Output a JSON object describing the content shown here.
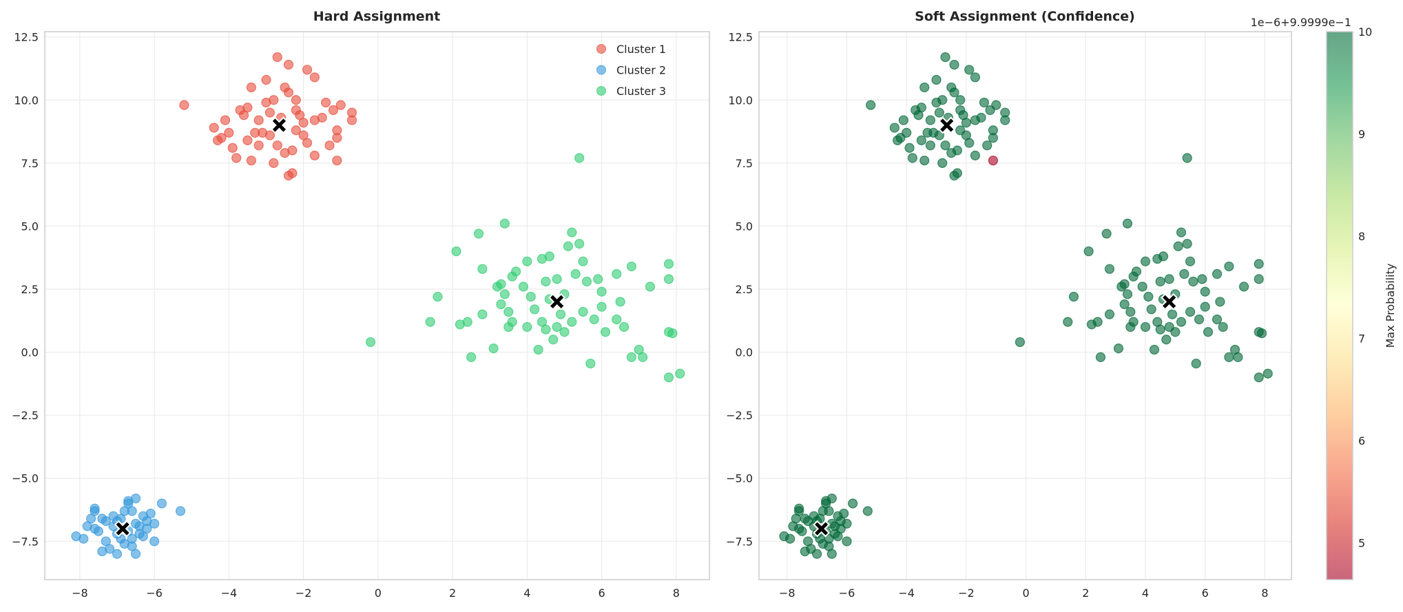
{
  "chart_data": [
    {
      "type": "scatter",
      "title": "Hard Assignment",
      "xlim": [
        -8.94,
        8.89
      ],
      "ylim": [
        -9.02,
        12.71
      ],
      "xticks": [
        -8,
        -6,
        -4,
        -2,
        0,
        2,
        4,
        6,
        8
      ],
      "yticks": [
        -7.5,
        -5.0,
        -2.5,
        0.0,
        2.5,
        5.0,
        7.5,
        10.0,
        12.5
      ],
      "ytick_labels": [
        "−7.5",
        "−5.0",
        "−2.5",
        "0.0",
        "2.5",
        "5.0",
        "7.5",
        "10.0",
        "12.5"
      ],
      "xtick_labels": [
        "−8",
        "−6",
        "−4",
        "−2",
        "0",
        "2",
        "4",
        "6",
        "8"
      ],
      "grid": true,
      "legend": "top-right",
      "series": [
        {
          "name": "Cluster 1",
          "color": "#e74c3c",
          "points": [
            [
              -5.2,
              9.8
            ],
            [
              -4.4,
              8.9
            ],
            [
              -4.3,
              8.4
            ],
            [
              -4.1,
              9.2
            ],
            [
              -3.9,
              8.1
            ],
            [
              -3.8,
              7.7
            ],
            [
              -3.7,
              9.6
            ],
            [
              -3.6,
              9.4
            ],
            [
              -3.5,
              8.4
            ],
            [
              -3.4,
              7.6
            ],
            [
              -3.4,
              10.5
            ],
            [
              -3.3,
              8.7
            ],
            [
              -3.2,
              9.2
            ],
            [
              -3.0,
              10.8
            ],
            [
              -2.9,
              9.5
            ],
            [
              -2.9,
              8.6
            ],
            [
              -2.8,
              10.0
            ],
            [
              -2.7,
              8.2
            ],
            [
              -2.7,
              11.7
            ],
            [
              -2.5,
              10.5
            ],
            [
              -2.4,
              11.4
            ],
            [
              -2.5,
              7.9
            ],
            [
              -2.4,
              7.0
            ],
            [
              -2.3,
              7.1
            ],
            [
              -2.2,
              10.0
            ],
            [
              -2.2,
              8.8
            ],
            [
              -2.1,
              9.4
            ],
            [
              -2.0,
              8.6
            ],
            [
              -1.9,
              11.2
            ],
            [
              -1.7,
              10.9
            ],
            [
              -1.7,
              9.2
            ],
            [
              -1.7,
              7.8
            ],
            [
              -1.5,
              9.3
            ],
            [
              -1.4,
              9.9
            ],
            [
              -1.2,
              9.6
            ],
            [
              -1.3,
              8.2
            ],
            [
              -1.1,
              8.5
            ],
            [
              -1.1,
              8.8
            ],
            [
              -1.1,
              7.6
            ],
            [
              -1.0,
              9.8
            ],
            [
              -0.7,
              9.5
            ],
            [
              -0.7,
              9.2
            ],
            [
              -3.1,
              8.7
            ],
            [
              -2.6,
              9.3
            ],
            [
              -3.5,
              9.7
            ],
            [
              -2.3,
              8.0
            ],
            [
              -2.8,
              7.5
            ],
            [
              -4.0,
              8.7
            ],
            [
              -3.0,
              9.9
            ],
            [
              -2.2,
              9.6
            ],
            [
              -1.9,
              8.3
            ],
            [
              -2.4,
              10.3
            ],
            [
              -3.2,
              8.2
            ],
            [
              -2.0,
              9.1
            ],
            [
              -4.2,
              8.5
            ]
          ]
        },
        {
          "name": "Cluster 2",
          "color": "#3498db",
          "points": [
            [
              -8.1,
              -7.3
            ],
            [
              -7.9,
              -7.4
            ],
            [
              -7.8,
              -6.9
            ],
            [
              -7.7,
              -6.6
            ],
            [
              -7.6,
              -6.3
            ],
            [
              -7.6,
              -6.2
            ],
            [
              -7.5,
              -7.1
            ],
            [
              -7.4,
              -7.9
            ],
            [
              -7.3,
              -6.7
            ],
            [
              -7.3,
              -7.5
            ],
            [
              -7.2,
              -7.8
            ],
            [
              -7.1,
              -6.5
            ],
            [
              -7.0,
              -7.2
            ],
            [
              -7.0,
              -8.0
            ],
            [
              -6.9,
              -6.6
            ],
            [
              -6.8,
              -6.3
            ],
            [
              -6.8,
              -7.6
            ],
            [
              -6.7,
              -6.0
            ],
            [
              -6.7,
              -5.9
            ],
            [
              -6.6,
              -7.4
            ],
            [
              -6.6,
              -7.7
            ],
            [
              -6.5,
              -6.8
            ],
            [
              -6.5,
              -8.0
            ],
            [
              -6.4,
              -7.2
            ],
            [
              -6.4,
              -6.9
            ],
            [
              -6.3,
              -6.5
            ],
            [
              -6.2,
              -7.0
            ],
            [
              -6.1,
              -6.4
            ],
            [
              -6.0,
              -7.5
            ],
            [
              -6.0,
              -6.8
            ],
            [
              -5.8,
              -6.0
            ],
            [
              -5.3,
              -6.3
            ],
            [
              -7.6,
              -7.0
            ],
            [
              -7.1,
              -6.9
            ],
            [
              -6.9,
              -7.4
            ],
            [
              -6.6,
              -6.3
            ],
            [
              -6.3,
              -7.3
            ],
            [
              -7.4,
              -6.6
            ],
            [
              -6.5,
              -5.8
            ],
            [
              -7.0,
              -6.7
            ],
            [
              -6.2,
              -6.7
            ],
            [
              -6.7,
              -7.1
            ]
          ]
        },
        {
          "name": "Cluster 3",
          "color": "#2ecc71",
          "points": [
            [
              -0.2,
              0.4
            ],
            [
              1.4,
              1.2
            ],
            [
              1.6,
              2.2
            ],
            [
              2.1,
              4.0
            ],
            [
              2.2,
              1.1
            ],
            [
              2.4,
              1.2
            ],
            [
              2.5,
              -0.2
            ],
            [
              2.7,
              4.7
            ],
            [
              2.8,
              3.3
            ],
            [
              2.8,
              1.5
            ],
            [
              3.1,
              0.15
            ],
            [
              3.2,
              2.6
            ],
            [
              3.3,
              1.9
            ],
            [
              3.4,
              5.1
            ],
            [
              3.4,
              2.3
            ],
            [
              3.5,
              1.0
            ],
            [
              3.5,
              1.6
            ],
            [
              3.6,
              3.0
            ],
            [
              3.7,
              3.2
            ],
            [
              3.9,
              2.6
            ],
            [
              4.0,
              3.6
            ],
            [
              4.0,
              1.0
            ],
            [
              4.1,
              2.2
            ],
            [
              4.3,
              0.1
            ],
            [
              4.4,
              1.2
            ],
            [
              4.4,
              3.7
            ],
            [
              4.5,
              2.8
            ],
            [
              4.6,
              2.1
            ],
            [
              4.6,
              3.8
            ],
            [
              4.7,
              0.5
            ],
            [
              4.8,
              1.0
            ],
            [
              4.8,
              2.9
            ],
            [
              4.9,
              1.5
            ],
            [
              5.0,
              0.8
            ],
            [
              5.1,
              4.2
            ],
            [
              5.2,
              4.75
            ],
            [
              5.2,
              1.2
            ],
            [
              5.3,
              3.1
            ],
            [
              5.4,
              4.3
            ],
            [
              5.4,
              7.7
            ],
            [
              5.5,
              3.6
            ],
            [
              5.5,
              1.6
            ],
            [
              5.6,
              2.8
            ],
            [
              5.7,
              -0.45
            ],
            [
              5.8,
              1.3
            ],
            [
              5.9,
              2.9
            ],
            [
              6.0,
              2.4
            ],
            [
              6.0,
              1.8
            ],
            [
              6.1,
              0.8
            ],
            [
              6.4,
              3.1
            ],
            [
              6.4,
              1.3
            ],
            [
              6.5,
              2.0
            ],
            [
              6.6,
              1.0
            ],
            [
              6.8,
              3.4
            ],
            [
              6.8,
              -0.2
            ],
            [
              7.0,
              0.1
            ],
            [
              7.1,
              -0.2
            ],
            [
              7.3,
              2.6
            ],
            [
              7.8,
              3.5
            ],
            [
              7.8,
              2.9
            ],
            [
              7.8,
              0.8
            ],
            [
              7.9,
              0.75
            ],
            [
              7.8,
              -1.0
            ],
            [
              8.1,
              -0.85
            ],
            [
              4.2,
              1.7
            ],
            [
              3.6,
              1.2
            ],
            [
              5.0,
              2.3
            ],
            [
              4.5,
              0.9
            ],
            [
              3.3,
              2.7
            ]
          ]
        }
      ],
      "centroids": [
        [
          -2.65,
          9.0
        ],
        [
          -6.85,
          -7.0
        ],
        [
          4.8,
          2.0
        ]
      ],
      "centroid_marker": "X"
    },
    {
      "type": "scatter",
      "title": "Soft Assignment (Confidence)",
      "xlim": [
        -8.94,
        8.89
      ],
      "ylim": [
        -9.02,
        12.71
      ],
      "grid": true,
      "points_from": "same points as Hard Assignment",
      "color_value_default": 10,
      "color_value_exceptions": [
        {
          "x": -1.1,
          "y": 7.6,
          "value": 4.65
        }
      ],
      "colormap": "RdYlGn",
      "colormap_stops": [
        "#a50026",
        "#d73027",
        "#f46d43",
        "#fdae61",
        "#fee08b",
        "#ffffbf",
        "#d9ef8b",
        "#a6d96a",
        "#66bd63",
        "#1a9850",
        "#006837"
      ],
      "colorbar": {
        "label": "Max Probability",
        "range": [
          4.64,
          10
        ],
        "ticks": [
          5,
          6,
          7,
          8,
          9,
          10
        ],
        "tick_labels": [
          "5",
          "6",
          "7",
          "8",
          "9",
          "10"
        ],
        "offset_text": "1e−6+9.9999e−1"
      },
      "centroids": [
        [
          -2.65,
          9.0
        ],
        [
          -6.85,
          -7.0
        ],
        [
          4.8,
          2.0
        ]
      ]
    }
  ]
}
